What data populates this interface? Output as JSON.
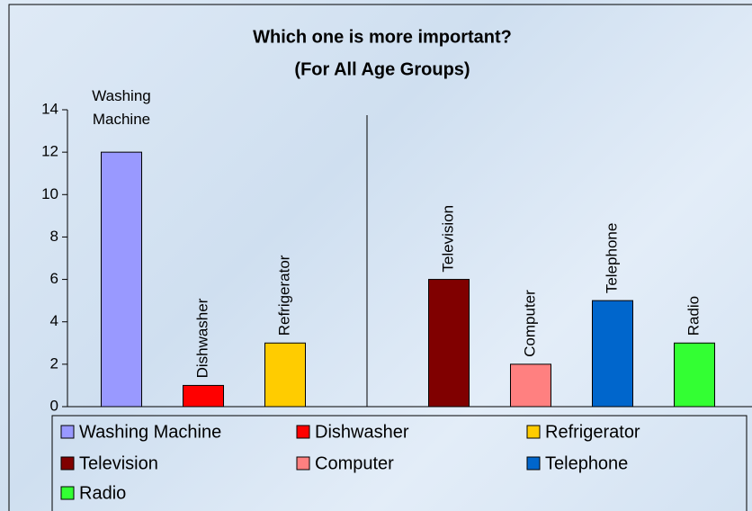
{
  "chart_data": {
    "type": "bar",
    "title": "Which one is more important?",
    "subtitle": "(For All Age Groups)",
    "categories": [
      "Washing Machine",
      "Dishwasher",
      "Refrigerator",
      "Television",
      "Computer",
      "Telephone",
      "Radio"
    ],
    "values": [
      12,
      1,
      3,
      6,
      2,
      5,
      3
    ],
    "colors": [
      "#9999ff",
      "#ff0000",
      "#ffcc00",
      "#800000",
      "#ff8080",
      "#0066cc",
      "#33ff33"
    ],
    "ylim": [
      0,
      14
    ],
    "yticks": [
      0,
      2,
      4,
      6,
      8,
      10,
      12,
      14
    ],
    "grid": false,
    "legend": "bottom"
  }
}
